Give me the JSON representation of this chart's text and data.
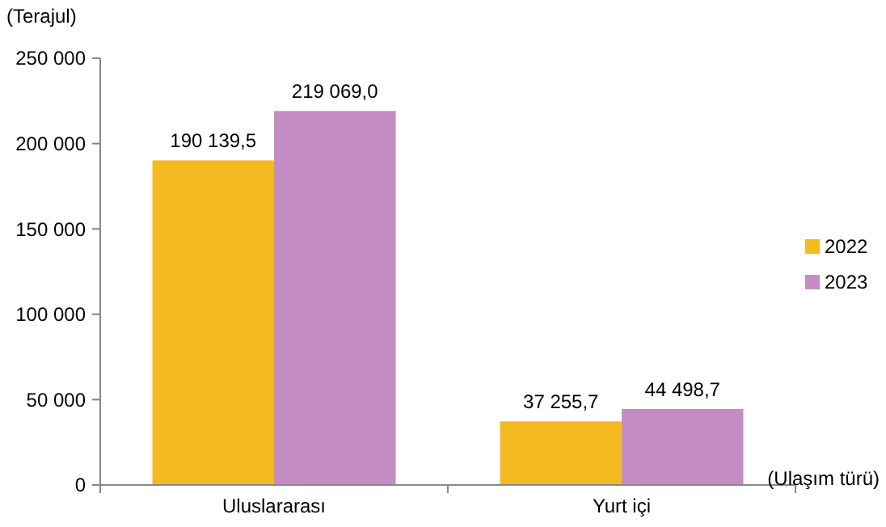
{
  "chart_data": {
    "type": "bar",
    "ylabel": "(Terajul)",
    "xlabel": "(Ulaşım türü)",
    "categories": [
      "Uluslararası",
      "Yurt içi"
    ],
    "series": [
      {
        "name": "2022",
        "color": "#f5b921",
        "values": [
          190139.5,
          37255.7
        ],
        "value_labels": [
          "190 139,5",
          "37 255,7"
        ]
      },
      {
        "name": "2023",
        "color": "#c38dc4",
        "values": [
          219069.0,
          44498.7
        ],
        "value_labels": [
          "219 069,0",
          "44 498,7"
        ]
      }
    ],
    "ylim": [
      0,
      250000
    ],
    "yticks": [
      {
        "value": 0,
        "label": "0"
      },
      {
        "value": 50000,
        "label": "50 000"
      },
      {
        "value": 100000,
        "label": "100 000"
      },
      {
        "value": 150000,
        "label": "150 000"
      },
      {
        "value": 200000,
        "label": "200 000"
      },
      {
        "value": 250000,
        "label": "250 000"
      }
    ],
    "grid": false,
    "legend": "right"
  }
}
